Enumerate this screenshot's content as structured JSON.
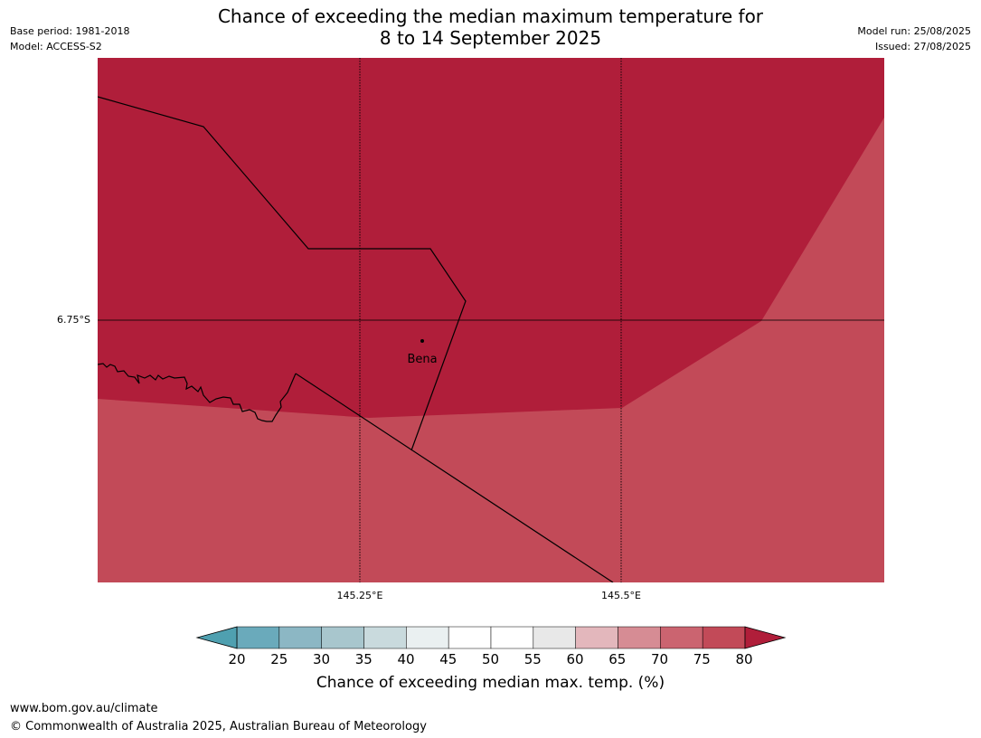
{
  "header": {
    "title_line1": "Chance of exceeding the median maximum temperature for",
    "title_line2": "8 to 14 September 2025",
    "base_period": "Base period: 1981-2018",
    "model": "Model: ACCESS-S2",
    "model_run": "Model run: 25/08/2025",
    "issued": "Issued: 27/08/2025"
  },
  "map": {
    "latitude_labels": [
      "6.75°S"
    ],
    "longitude_labels": [
      "145.25°E",
      "145.5°E"
    ],
    "places": [
      {
        "name": "Bena",
        "icon": "town-dot-icon"
      }
    ],
    "fill_colors": {
      "80_plus": "#b01e3a",
      "75_80": "#c24a58"
    }
  },
  "colorbar": {
    "ticks": [
      "20",
      "25",
      "30",
      "35",
      "40",
      "45",
      "50",
      "55",
      "60",
      "65",
      "70",
      "75",
      "80"
    ],
    "colors": [
      "#4fa0b0",
      "#6aaabb",
      "#8cb7c4",
      "#a8c6cd",
      "#c9dadd",
      "#eaf0f1",
      "#ffffff",
      "#ffffff",
      "#e8e8e8",
      "#e3b7bc",
      "#d68c94",
      "#cb6470",
      "#c24a58",
      "#b01e3a"
    ],
    "label": "Chance of exceeding median max. temp. (%)"
  },
  "footer": {
    "url": "www.bom.gov.au/climate",
    "copyright": "© Commonwealth of Australia 2025, Australian Bureau of Meteorology"
  }
}
